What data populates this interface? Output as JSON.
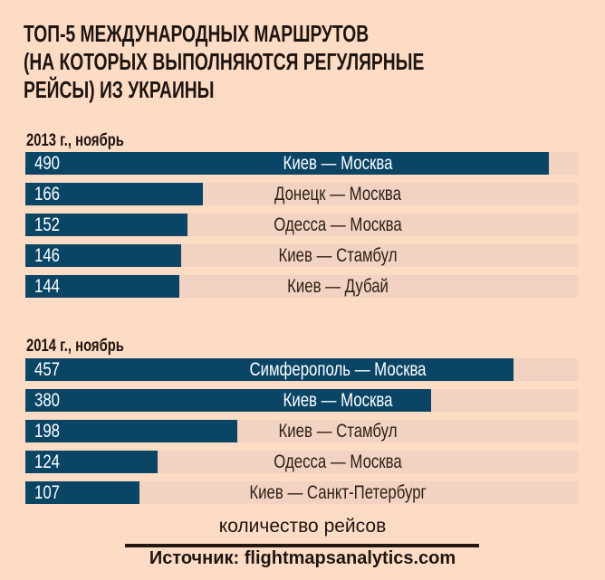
{
  "chart_data": {
    "type": "bar",
    "orientation": "horizontal",
    "title_lines": [
      "ТОП-5 МЕЖДУНАРОДНЫХ  МАРШРУТОВ",
      "(НА КОТОРЫХ ВЫПОЛНЯЮТСЯ РЕГУЛЯРНЫЕ",
      "РЕЙСЫ)  ИЗ УКРАИНЫ"
    ],
    "xlabel": "количество рейсов",
    "xlim": [
      0,
      517
    ],
    "groups": [
      {
        "name": "2013 г., ноябрь",
        "categories": [
          "Киев — Москва",
          "Донецк — Москва",
          "Одесса — Москва",
          "Киев — Стамбул",
          "Киев — Дубай"
        ],
        "values": [
          490,
          166,
          152,
          146,
          144
        ]
      },
      {
        "name": "2014 г., ноябрь",
        "categories": [
          "Симферополь — Москва",
          "Киев — Москва",
          "Киев — Стамбул",
          "Одесса — Москва",
          "Киев — Санкт-Петербург"
        ],
        "values": [
          457,
          380,
          198,
          124,
          107
        ]
      }
    ],
    "source": "Источник: flightmapsanalytics.com",
    "colors": {
      "bar": "#0a4566",
      "track": "#f2d3c1",
      "background": "#fddcc6"
    }
  }
}
